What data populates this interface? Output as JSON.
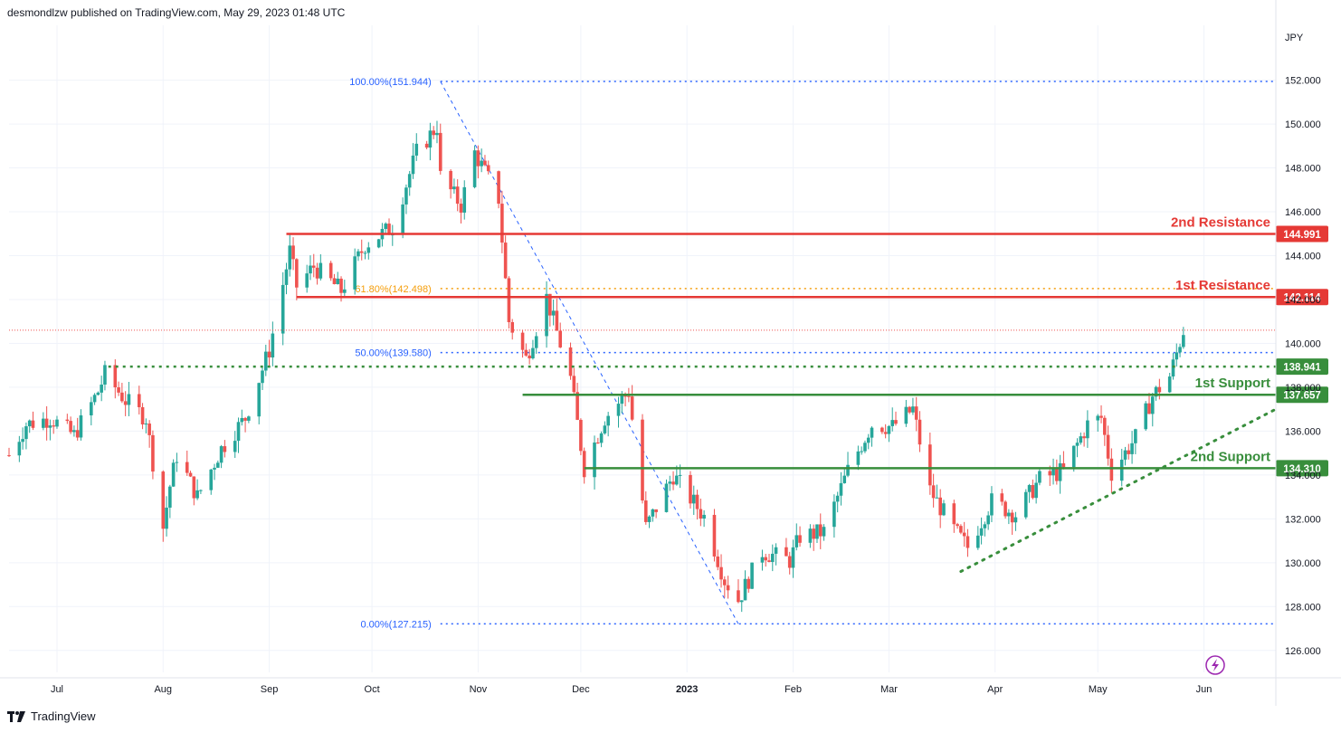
{
  "header": {
    "text": "desmondlzw published on TradingView.com, May 29, 2023 01:48 UTC"
  },
  "footer": {
    "brand": "TradingView"
  },
  "colors": {
    "up": "#26a69a",
    "down": "#ef5350",
    "resistance": "#e53935",
    "support": "#388e3c",
    "fib": "#2962ff",
    "fib_golden": "#f59e0b"
  },
  "chart_data": {
    "type": "candlestick",
    "currency_label": "JPY",
    "y_ticks": [
      "126.000",
      "128.000",
      "130.000",
      "132.000",
      "134.000",
      "136.000",
      "138.000",
      "140.000",
      "142.000",
      "144.000",
      "146.000",
      "148.000",
      "150.000",
      "152.000"
    ],
    "ylim": [
      125,
      154.5
    ],
    "x_ticks": [
      {
        "label": "Jul",
        "date": "2022-07-01"
      },
      {
        "label": "Aug",
        "date": "2022-08-01"
      },
      {
        "label": "Sep",
        "date": "2022-09-01"
      },
      {
        "label": "Oct",
        "date": "2022-10-01"
      },
      {
        "label": "Nov",
        "date": "2022-11-01"
      },
      {
        "label": "Dec",
        "date": "2022-12-01"
      },
      {
        "label": "2023",
        "date": "2023-01-01",
        "bold": true
      },
      {
        "label": "Feb",
        "date": "2023-02-01"
      },
      {
        "label": "Mar",
        "date": "2023-03-01"
      },
      {
        "label": "Apr",
        "date": "2023-04-01"
      },
      {
        "label": "May",
        "date": "2023-05-01"
      },
      {
        "label": "Jun",
        "date": "2023-06-01"
      }
    ],
    "xlim": [
      "2022-06-17",
      "2023-06-22"
    ],
    "trajectory": [
      [
        "2022-06-17",
        134.9
      ],
      [
        "2022-06-22",
        136.3
      ],
      [
        "2022-06-29",
        136.6
      ],
      [
        "2022-07-06",
        135.8
      ],
      [
        "2022-07-13",
        137.8
      ],
      [
        "2022-07-15",
        138.6
      ],
      [
        "2022-07-21",
        137.4
      ],
      [
        "2022-07-27",
        136.6
      ],
      [
        "2022-08-01",
        131.6
      ],
      [
        "2022-08-03",
        133.5
      ],
      [
        "2022-08-05",
        134.9
      ],
      [
        "2022-08-11",
        133.0
      ],
      [
        "2022-08-18",
        135.2
      ],
      [
        "2022-08-25",
        136.6
      ],
      [
        "2022-09-01",
        139.7
      ],
      [
        "2022-09-07",
        144.2
      ],
      [
        "2022-09-09",
        142.6
      ],
      [
        "2022-09-14",
        143.5
      ],
      [
        "2022-09-22",
        142.4
      ],
      [
        "2022-09-29",
        144.5
      ],
      [
        "2022-10-07",
        145.3
      ],
      [
        "2022-10-14",
        148.7
      ],
      [
        "2022-10-20",
        149.9
      ],
      [
        "2022-10-21",
        147.6
      ],
      [
        "2022-10-27",
        146.3
      ],
      [
        "2022-10-31",
        148.7
      ],
      [
        "2022-11-07",
        146.6
      ],
      [
        "2022-11-10",
        141.0
      ],
      [
        "2022-11-15",
        139.3
      ],
      [
        "2022-11-21",
        142.1
      ],
      [
        "2022-11-28",
        138.4
      ],
      [
        "2022-12-02",
        134.3
      ],
      [
        "2022-12-08",
        136.6
      ],
      [
        "2022-12-15",
        137.8
      ],
      [
        "2022-12-20",
        131.6
      ],
      [
        "2022-12-28",
        134.0
      ],
      [
        "2023-01-06",
        132.1
      ],
      [
        "2023-01-12",
        129.2
      ],
      [
        "2023-01-16",
        128.3
      ],
      [
        "2023-01-23",
        130.5
      ],
      [
        "2023-01-31",
        130.1
      ],
      [
        "2023-02-03",
        131.2
      ],
      [
        "2023-02-10",
        131.4
      ],
      [
        "2023-02-17",
        134.2
      ],
      [
        "2023-02-24",
        136.3
      ],
      [
        "2023-03-02",
        136.2
      ],
      [
        "2023-03-08",
        137.0
      ],
      [
        "2023-03-13",
        133.3
      ],
      [
        "2023-03-20",
        131.5
      ],
      [
        "2023-03-24",
        130.7
      ],
      [
        "2023-03-31",
        132.8
      ],
      [
        "2023-04-07",
        132.2
      ],
      [
        "2023-04-14",
        133.8
      ],
      [
        "2023-04-21",
        134.2
      ],
      [
        "2023-04-28",
        136.3
      ],
      [
        "2023-05-02",
        136.6
      ],
      [
        "2023-05-05",
        134.1
      ],
      [
        "2023-05-12",
        135.7
      ],
      [
        "2023-05-17",
        137.6
      ],
      [
        "2023-05-22",
        138.5
      ],
      [
        "2023-05-26",
        140.6
      ]
    ],
    "fib_levels": [
      {
        "label": "100.00%(151.944)",
        "value": 151.944
      },
      {
        "label": "61.80%(142.498)",
        "value": 142.498,
        "golden": true
      },
      {
        "label": "50.00%(139.580)",
        "value": 139.58
      },
      {
        "label": "0.00%(127.215)",
        "value": 127.215
      }
    ],
    "fib_start_date": "2022-10-21",
    "fib_diagonal": [
      [
        "2022-10-21",
        151.944
      ],
      [
        "2023-01-16",
        127.215
      ]
    ],
    "levels": [
      {
        "name": "2nd Resistance",
        "value": 144.991,
        "tag": "144.991",
        "kind": "resistance",
        "from": "2022-09-06"
      },
      {
        "name": "1st Resistance",
        "value": 142.114,
        "tag": "142.114",
        "kind": "resistance",
        "from": "2022-09-09"
      },
      {
        "name": "",
        "value": 138.941,
        "tag": "138.941",
        "kind": "support-dotted",
        "from": "2022-07-16"
      },
      {
        "name": "1st Support",
        "value": 137.657,
        "tag": "137.657",
        "kind": "support",
        "from": "2022-11-14"
      },
      {
        "name": "2nd Support",
        "value": 134.31,
        "tag": "134.310",
        "kind": "support",
        "from": "2022-12-02"
      }
    ],
    "trendline": [
      [
        "2023-03-22",
        129.6
      ],
      [
        "2023-06-22",
        137.0
      ]
    ],
    "last_price": 140.6
  }
}
